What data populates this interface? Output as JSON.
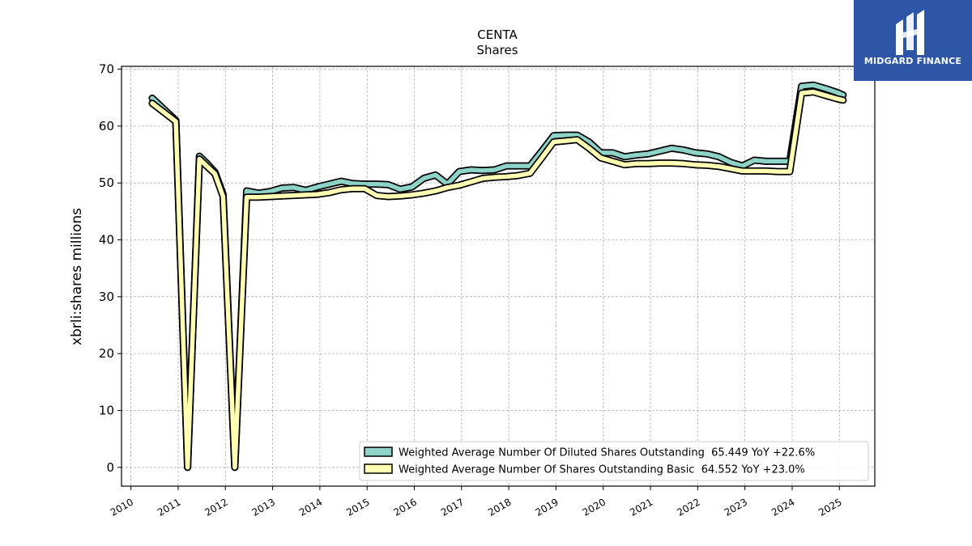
{
  "brand": {
    "name": "MIDGARD FINANCE",
    "color": "#2e56a6",
    "icon": "midgard-logo-icon"
  },
  "chart_data": {
    "type": "line",
    "title": "CENTA",
    "subtitle": "Shares",
    "ylabel": "xbrli:shares millions",
    "xlabel": "",
    "ylim": [
      -3.3,
      70.5
    ],
    "xlim": [
      2009.8,
      2025.75
    ],
    "yticks": [
      0,
      10,
      20,
      30,
      40,
      50,
      60,
      70
    ],
    "xticks": [
      2010,
      2011,
      2012,
      2013,
      2014,
      2015,
      2016,
      2017,
      2018,
      2019,
      2020,
      2021,
      2022,
      2023,
      2024,
      2025
    ],
    "grid": true,
    "legend_position": "lower-right",
    "series": [
      {
        "name": "Weighted Average Number Of Diluted Shares Outstanding",
        "legend_label": "Weighted Average Number Of Diluted Shares Outstanding  65.449 YoY +22.6%",
        "color": "#8dd3c7",
        "x": [
          2010.45,
          2010.95,
          2011.2,
          2011.45,
          2011.6,
          2011.78,
          2011.95,
          2012.2,
          2012.45,
          2012.7,
          2012.95,
          2013.2,
          2013.45,
          2013.7,
          2013.95,
          2014.2,
          2014.45,
          2014.7,
          2014.95,
          2015.2,
          2015.45,
          2015.7,
          2015.95,
          2016.2,
          2016.45,
          2016.7,
          2016.95,
          2017.2,
          2017.45,
          2017.7,
          2017.95,
          2018.2,
          2018.45,
          2018.7,
          2018.95,
          2019.2,
          2019.45,
          2019.7,
          2019.95,
          2020.2,
          2020.45,
          2020.7,
          2020.95,
          2021.2,
          2021.45,
          2021.7,
          2021.95,
          2022.2,
          2022.45,
          2022.7,
          2022.95,
          2023.2,
          2023.45,
          2023.7,
          2023.95,
          2024.2,
          2024.45,
          2024.7,
          2024.95,
          2025.08
        ],
        "values": [
          64.9,
          61.0,
          0,
          54.7,
          53.5,
          51.9,
          48.0,
          0,
          48.6,
          48.2,
          48.5,
          49.1,
          49.2,
          48.7,
          49.3,
          49.8,
          50.3,
          49.9,
          49.8,
          49.8,
          49.7,
          48.9,
          49.3,
          50.8,
          51.4,
          49.8,
          52.0,
          52.3,
          52.2,
          52.3,
          53.0,
          53.0,
          53.0,
          55.6,
          58.3,
          58.4,
          58.4,
          57.2,
          55.3,
          55.3,
          54.6,
          54.9,
          55.1,
          55.6,
          56.1,
          55.8,
          55.3,
          55.1,
          54.6,
          53.6,
          53.0,
          54.0,
          53.8,
          53.8,
          53.8,
          67.0,
          67.2,
          66.6,
          65.9,
          65.449
        ]
      },
      {
        "name": "Weighted Average Number Of Shares Outstanding Basic",
        "legend_label": "Weighted Average Number Of Shares Outstanding Basic  64.552 YoY +23.0%",
        "color": "#ffffb3",
        "x": [
          2010.45,
          2010.95,
          2011.2,
          2011.45,
          2011.6,
          2011.78,
          2011.95,
          2012.2,
          2012.45,
          2012.7,
          2012.95,
          2013.2,
          2013.45,
          2013.7,
          2013.95,
          2014.2,
          2014.45,
          2014.7,
          2014.95,
          2015.2,
          2015.45,
          2015.7,
          2015.95,
          2016.2,
          2016.45,
          2016.7,
          2016.95,
          2017.2,
          2017.45,
          2017.7,
          2017.95,
          2018.2,
          2018.45,
          2018.7,
          2018.95,
          2019.2,
          2019.45,
          2019.7,
          2019.95,
          2020.2,
          2020.45,
          2020.7,
          2020.95,
          2021.2,
          2021.45,
          2021.7,
          2021.95,
          2022.2,
          2022.45,
          2022.7,
          2022.95,
          2023.2,
          2023.45,
          2023.7,
          2023.95,
          2024.2,
          2024.45,
          2024.7,
          2024.95,
          2025.08
        ],
        "values": [
          64.0,
          60.8,
          0,
          54.2,
          53.0,
          51.6,
          47.6,
          0,
          47.5,
          47.5,
          47.6,
          47.7,
          47.8,
          47.9,
          48.0,
          48.3,
          48.8,
          49.0,
          49.0,
          47.8,
          47.6,
          47.7,
          47.9,
          48.2,
          48.6,
          49.2,
          49.6,
          50.2,
          50.8,
          51.0,
          51.1,
          51.3,
          51.7,
          54.4,
          57.2,
          57.4,
          57.6,
          56.1,
          54.4,
          53.8,
          53.2,
          53.4,
          53.4,
          53.5,
          53.5,
          53.4,
          53.2,
          53.1,
          52.9,
          52.5,
          52.1,
          52.1,
          52.1,
          52.0,
          52.0,
          65.8,
          66.0,
          65.4,
          64.8,
          64.552
        ]
      }
    ]
  }
}
